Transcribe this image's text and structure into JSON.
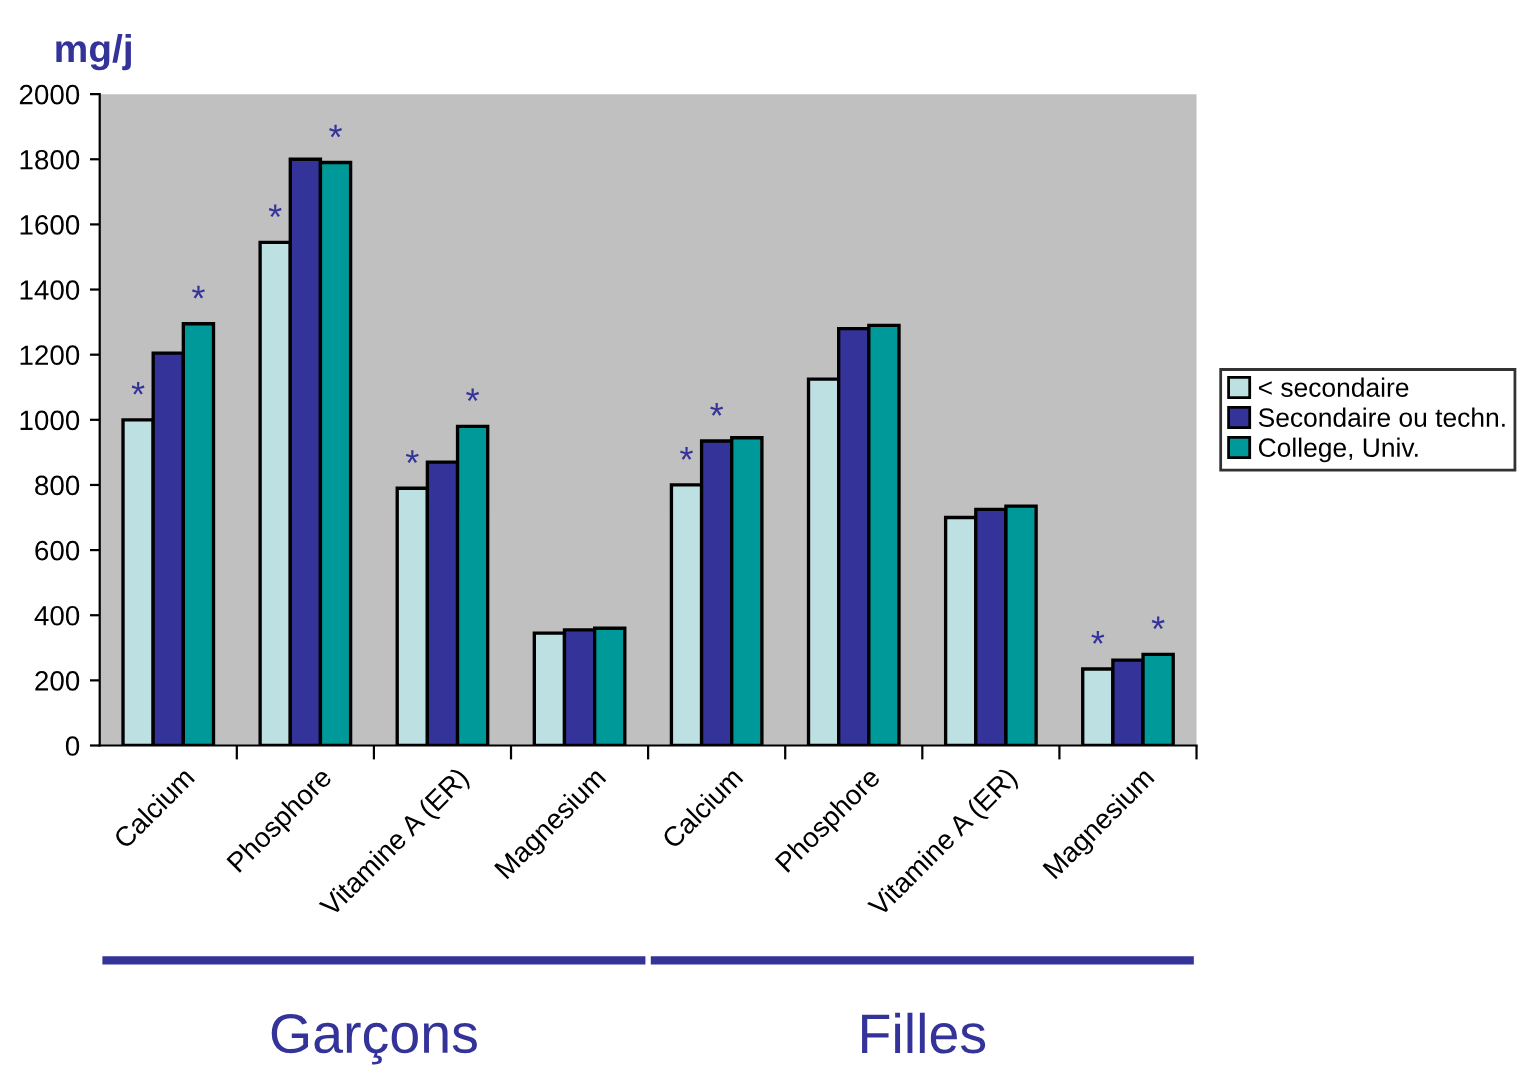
{
  "chart_data": {
    "type": "bar",
    "title": "mg/j",
    "categories": [
      "Calcium",
      "Phosphore",
      "Vitamine A (ER)",
      "Magnesium",
      "Calcium",
      "Phosphore",
      "Vitamine A (ER)",
      "Magnesium"
    ],
    "series": [
      {
        "name": "< secondaire",
        "color": "#bde0e3",
        "values": [
          1000,
          1545,
          790,
          345,
          800,
          1125,
          700,
          235
        ],
        "value_labels": [
          "*",
          "*",
          "*",
          null,
          "*",
          null,
          null,
          "*"
        ]
      },
      {
        "name": "Secondaire ou techn.",
        "color": "#333399",
        "values": [
          1205,
          1800,
          870,
          355,
          935,
          1280,
          725,
          262
        ],
        "value_labels": [
          null,
          null,
          null,
          null,
          "*",
          null,
          null,
          null
        ]
      },
      {
        "name": "College, Univ.",
        "color": "#009999",
        "values": [
          1295,
          1790,
          980,
          360,
          945,
          1290,
          735,
          280
        ],
        "value_labels": [
          "*",
          "*",
          "*",
          null,
          null,
          null,
          null,
          "*"
        ]
      }
    ],
    "ylim": [
      0,
      2000
    ],
    "yticks": [
      0,
      200,
      400,
      600,
      800,
      1000,
      1200,
      1400,
      1600,
      1800,
      2000
    ],
    "grid": false,
    "legend": "right",
    "annotations": [
      "Garçons",
      "Filles"
    ]
  }
}
